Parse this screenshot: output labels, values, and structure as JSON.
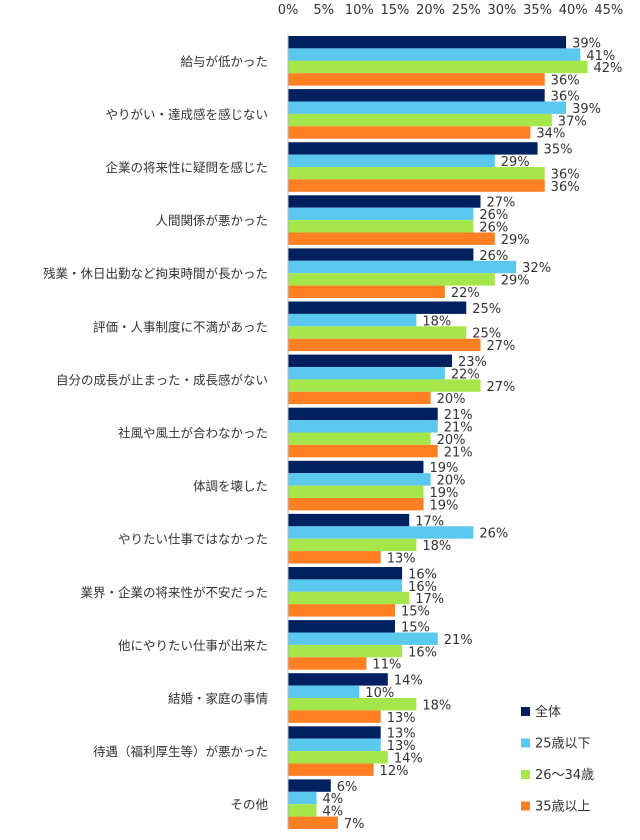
{
  "chart_data": {
    "type": "bar",
    "orientation": "horizontal",
    "categories": [
      "給与が低かった",
      "やりがい・達成感を感じない",
      "企業の将来性に疑問を感じた",
      "人間関係が悪かった",
      "残業・休日出勤など拘束時間が長かった",
      "評価・人事制度に不満があった",
      "自分の成長が止まった・成長感がない",
      "社風や風土が合わなかった",
      "体調を壊した",
      "やりたい仕事ではなかった",
      "業界・企業の将来性が不安だった",
      "他にやりたい仕事が出来た",
      "結婚・家庭の事情",
      "待遇（福利厚生等）が悪かった",
      "その他"
    ],
    "series": [
      {
        "name": "全体",
        "color": "#002060",
        "values": [
          39,
          36,
          35,
          27,
          26,
          25,
          23,
          21,
          19,
          17,
          16,
          15,
          14,
          13,
          6
        ]
      },
      {
        "name": "25歳以下",
        "color": "#5BC8F0",
        "values": [
          41,
          39,
          29,
          26,
          32,
          18,
          22,
          21,
          20,
          26,
          16,
          21,
          10,
          13,
          4
        ]
      },
      {
        "name": "26～34歳",
        "color": "#A5E64B",
        "values": [
          42,
          37,
          36,
          26,
          29,
          25,
          27,
          20,
          19,
          18,
          17,
          16,
          18,
          14,
          4
        ]
      },
      {
        "name": "35歳以上",
        "color": "#FF7F22",
        "values": [
          36,
          34,
          36,
          29,
          22,
          27,
          20,
          21,
          19,
          13,
          15,
          11,
          13,
          12,
          7
        ]
      }
    ],
    "xlim": [
      0,
      45
    ],
    "xticks": [
      "0%",
      "5%",
      "10%",
      "15%",
      "20%",
      "25%",
      "30%",
      "35%",
      "40%",
      "45%"
    ],
    "value_suffix": "%",
    "grid": false,
    "legend_position": "bottom-right"
  }
}
